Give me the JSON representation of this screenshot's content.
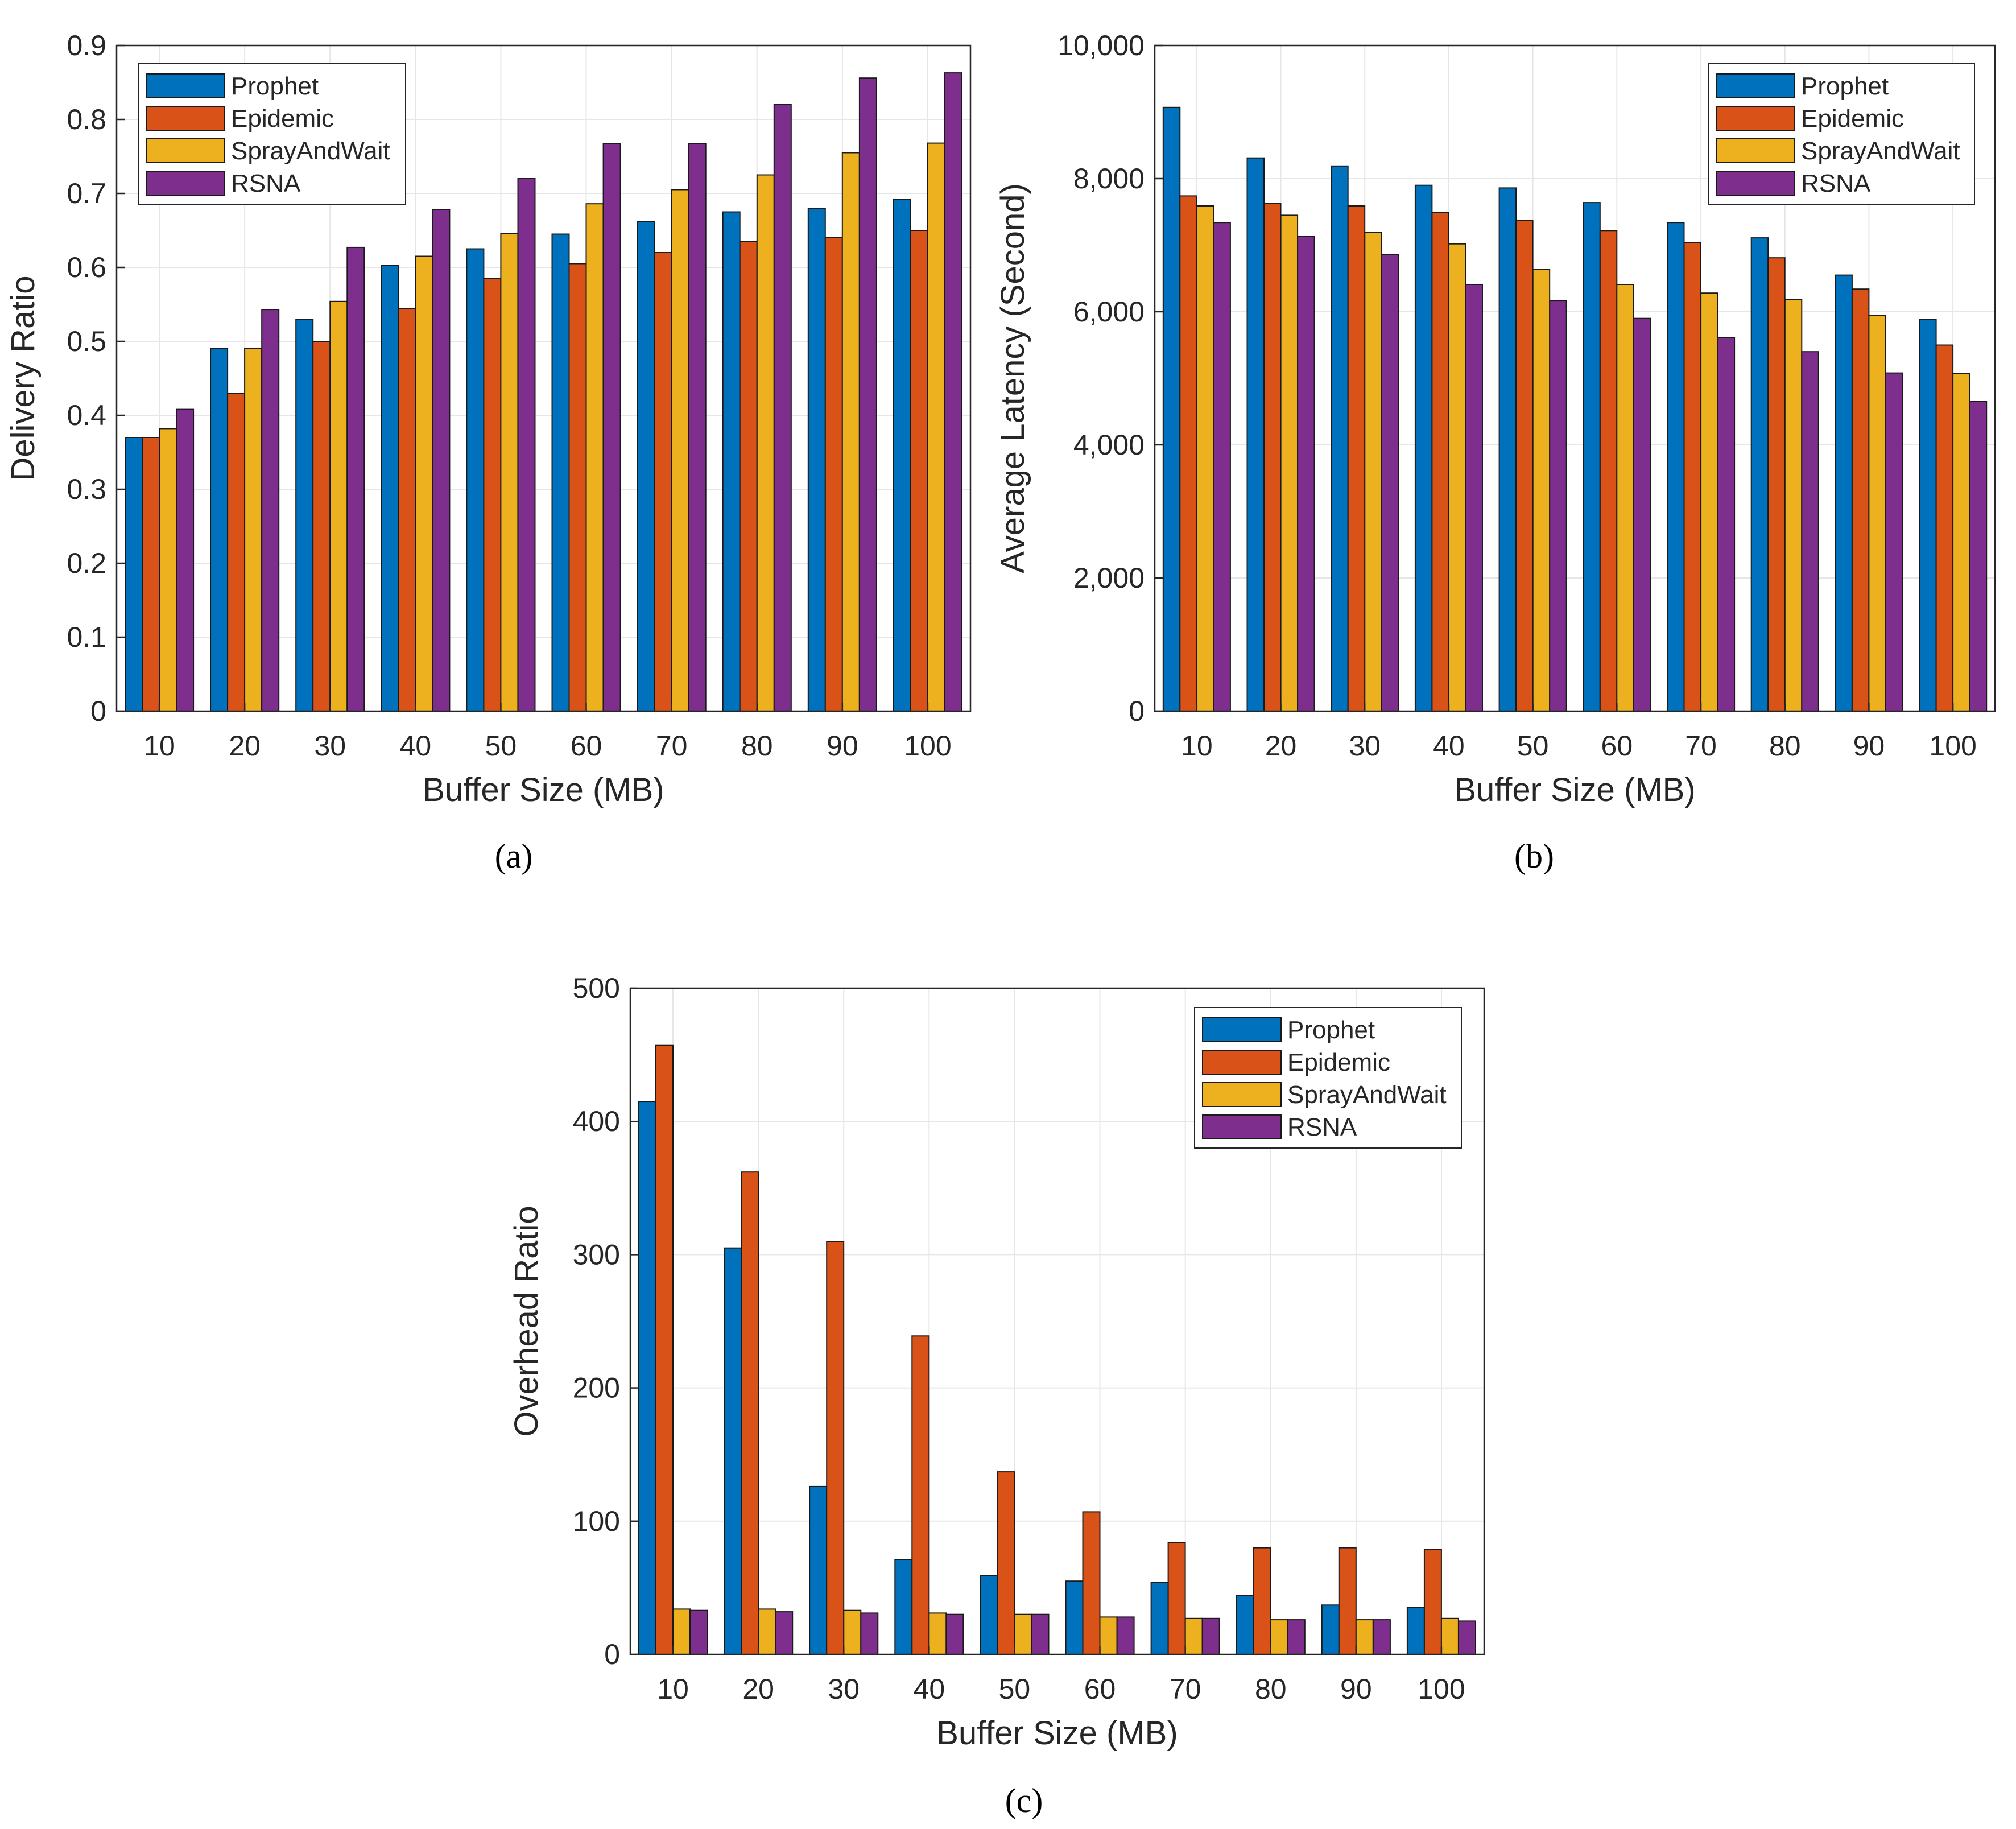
{
  "chart_data": [
    {
      "type": "bar",
      "panel_label": "(a)",
      "xlabel": "Buffer Size (MB)",
      "ylabel": "Delivery Ratio",
      "categories": [
        "10",
        "20",
        "30",
        "40",
        "50",
        "60",
        "70",
        "80",
        "90",
        "100"
      ],
      "ylim": [
        0,
        0.9
      ],
      "yticks": [
        "0",
        "0.1",
        "0.2",
        "0.3",
        "0.4",
        "0.5",
        "0.6",
        "0.7",
        "0.8",
        "0.9"
      ],
      "grid": true,
      "legend_position": "top-left",
      "series": [
        {
          "name": "Prophet",
          "color": "#0072BD",
          "values": [
            0.37,
            0.49,
            0.53,
            0.603,
            0.625,
            0.645,
            0.662,
            0.675,
            0.68,
            0.692
          ]
        },
        {
          "name": "Epidemic",
          "color": "#D95319",
          "values": [
            0.37,
            0.43,
            0.5,
            0.544,
            0.585,
            0.605,
            0.62,
            0.635,
            0.64,
            0.65
          ]
        },
        {
          "name": "SprayAndWait",
          "color": "#EDB120",
          "values": [
            0.382,
            0.49,
            0.554,
            0.615,
            0.646,
            0.686,
            0.705,
            0.725,
            0.755,
            0.768
          ]
        },
        {
          "name": "RSNA",
          "color": "#7E2F8E",
          "values": [
            0.408,
            0.543,
            0.627,
            0.678,
            0.72,
            0.767,
            0.767,
            0.82,
            0.856,
            0.863
          ]
        }
      ]
    },
    {
      "type": "bar",
      "panel_label": "(b)",
      "xlabel": "Buffer Size (MB)",
      "ylabel": "Average Latency (Second)",
      "categories": [
        "10",
        "20",
        "30",
        "40",
        "50",
        "60",
        "70",
        "80",
        "90",
        "100"
      ],
      "ylim": [
        0,
        10000
      ],
      "yticks": [
        "0",
        "2,000",
        "4,000",
        "6,000",
        "8,000",
        "10,000"
      ],
      "grid": true,
      "legend_position": "top-right",
      "series": [
        {
          "name": "Prophet",
          "color": "#0072BD",
          "values": [
            9070,
            8310,
            8190,
            7900,
            7860,
            7640,
            7340,
            7110,
            6550,
            5880
          ]
        },
        {
          "name": "Epidemic",
          "color": "#D95319",
          "values": [
            7740,
            7630,
            7590,
            7490,
            7370,
            7220,
            7040,
            6810,
            6340,
            5500
          ]
        },
        {
          "name": "SprayAndWait",
          "color": "#EDB120",
          "values": [
            7590,
            7450,
            7190,
            7020,
            6640,
            6410,
            6280,
            6180,
            5940,
            5070
          ]
        },
        {
          "name": "RSNA",
          "color": "#7E2F8E",
          "values": [
            7340,
            7130,
            6860,
            6410,
            6170,
            5900,
            5610,
            5400,
            5080,
            4650
          ]
        }
      ]
    },
    {
      "type": "bar",
      "panel_label": "(c)",
      "xlabel": "Buffer Size (MB)",
      "ylabel": "Overhead Ratio",
      "categories": [
        "10",
        "20",
        "30",
        "40",
        "50",
        "60",
        "70",
        "80",
        "90",
        "100"
      ],
      "ylim": [
        0,
        500
      ],
      "yticks": [
        "0",
        "100",
        "200",
        "300",
        "400",
        "500"
      ],
      "grid": true,
      "legend_position": "top-right",
      "series": [
        {
          "name": "Prophet",
          "color": "#0072BD",
          "values": [
            415,
            305,
            126,
            71,
            59,
            55,
            54,
            44,
            37,
            35
          ]
        },
        {
          "name": "Epidemic",
          "color": "#D95319",
          "values": [
            457,
            362,
            310,
            239,
            137,
            107,
            84,
            80,
            80,
            79
          ]
        },
        {
          "name": "SprayAndWait",
          "color": "#EDB120",
          "values": [
            34,
            34,
            33,
            31,
            30,
            28,
            27,
            26,
            26,
            27
          ]
        },
        {
          "name": "RSNA",
          "color": "#7E2F8E",
          "values": [
            33,
            32,
            31,
            30,
            30,
            28,
            27,
            26,
            26,
            25
          ]
        }
      ]
    }
  ]
}
